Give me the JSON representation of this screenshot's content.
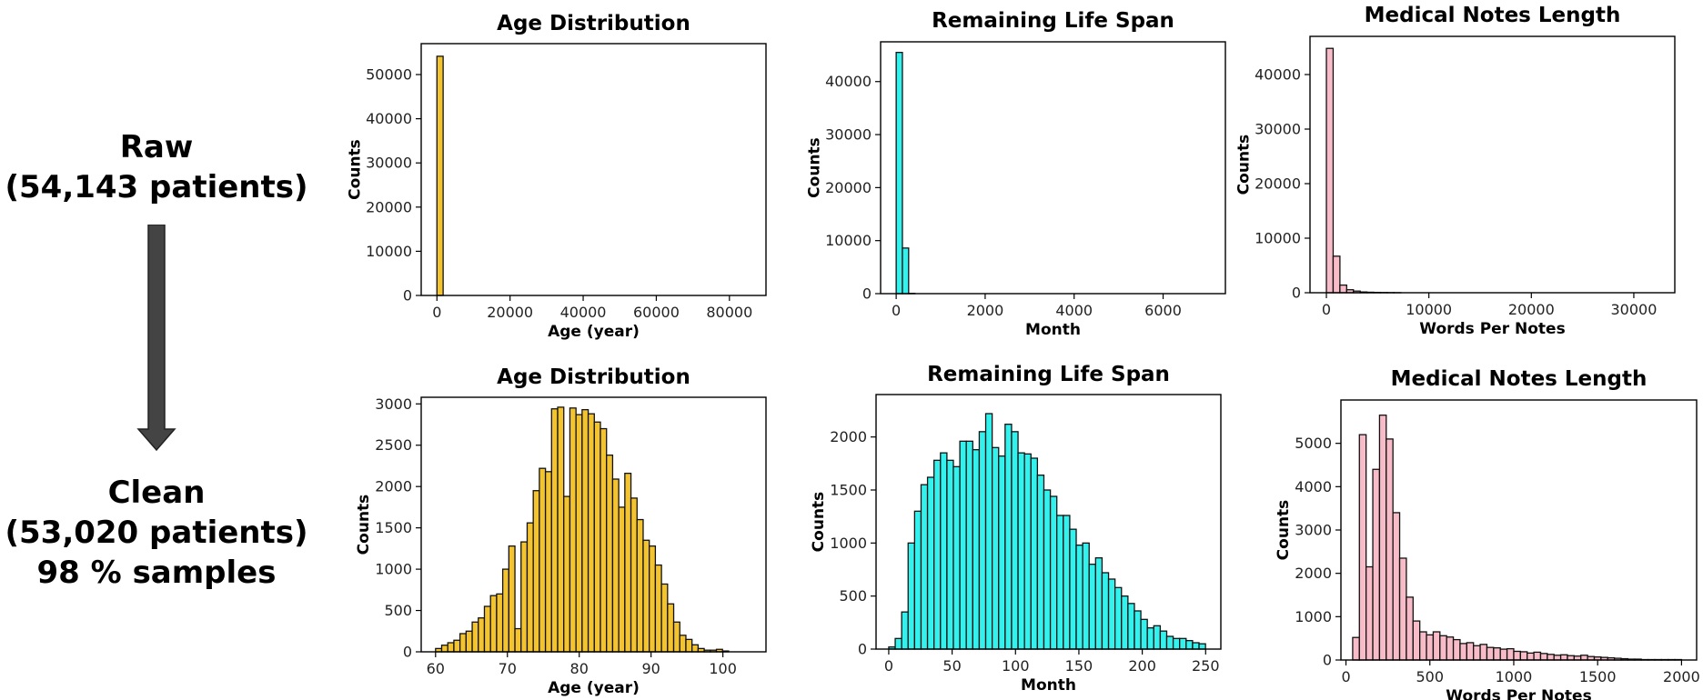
{
  "labels": {
    "raw": [
      "Raw",
      "(54,143 patients)"
    ],
    "clean": [
      "Clean",
      "(53,020 patients)",
      "98 % samples"
    ]
  },
  "colors": {
    "age": "#f4c430",
    "life": "#33f2ee",
    "notes": "#f8bcc8"
  },
  "chart_data": [
    {
      "type": "bar",
      "title": "Age Distribution",
      "xlabel": "Age (year)",
      "ylabel": "Counts",
      "color": "#f4c430",
      "bin_start": 0,
      "bin_width": 1700,
      "values": [
        54143
      ],
      "xlim": [
        -4300,
        90000
      ],
      "ylim": [
        0,
        57000
      ],
      "xticks": [
        0,
        20000,
        40000,
        60000,
        80000
      ],
      "yticks": [
        0,
        10000,
        20000,
        30000,
        40000,
        50000
      ]
    },
    {
      "type": "bar",
      "title": "Remaining Life Span",
      "xlabel": "Month",
      "ylabel": "Counts",
      "color": "#33f2ee",
      "bin_start": 0,
      "bin_width": 140,
      "values": [
        45500,
        8600,
        43
      ],
      "xlim": [
        -350,
        7400
      ],
      "ylim": [
        0,
        47500
      ],
      "xticks": [
        0,
        2000,
        4000,
        6000
      ],
      "yticks": [
        0,
        10000,
        20000,
        30000,
        40000
      ]
    },
    {
      "type": "bar",
      "title": "Medical Notes Length",
      "xlabel": "Words Per Notes",
      "ylabel": "Counts",
      "color": "#f8bcc8",
      "bin_start": 0,
      "bin_width": 660,
      "values": [
        44800,
        6700,
        1400,
        550,
        300,
        140,
        90,
        60,
        40,
        25,
        15
      ],
      "xlim": [
        -1600,
        34000
      ],
      "ylim": [
        0,
        47000
      ],
      "xticks": [
        0,
        10000,
        20000,
        30000
      ],
      "yticks": [
        0,
        10000,
        20000,
        30000,
        40000
      ]
    },
    {
      "type": "bar",
      "title": "Age Distribution",
      "xlabel": "Age (year)",
      "ylabel": "Counts",
      "color": "#f4c430",
      "bin_start": 60,
      "bin_width": 0.85,
      "values": [
        40,
        80,
        110,
        140,
        220,
        250,
        360,
        410,
        550,
        680,
        700,
        1000,
        1280,
        280,
        1330,
        1560,
        1950,
        2220,
        2180,
        2940,
        2960,
        1880,
        2950,
        2870,
        2930,
        2880,
        2780,
        2700,
        2380,
        2090,
        1750,
        2160,
        1860,
        1600,
        1350,
        1280,
        1050,
        820,
        580,
        360,
        200,
        150,
        85,
        40,
        20,
        20,
        30,
        10
      ],
      "xlim": [
        58,
        106
      ],
      "ylim": [
        0,
        3080
      ],
      "xticks": [
        60,
        70,
        80,
        90,
        100
      ],
      "yticks": [
        0,
        500,
        1000,
        1500,
        2000,
        2500,
        3000
      ]
    },
    {
      "type": "bar",
      "title": "Remaining Life Span",
      "xlabel": "Month",
      "ylabel": "Counts",
      "color": "#33f2ee",
      "bin_start": 0,
      "bin_width": 5.1,
      "values": [
        20,
        100,
        350,
        1000,
        1300,
        1550,
        1620,
        1780,
        1850,
        1780,
        1720,
        1960,
        1960,
        1880,
        2050,
        2220,
        1900,
        1820,
        2120,
        2050,
        1850,
        1840,
        1800,
        1640,
        1500,
        1440,
        1260,
        1260,
        1130,
        980,
        1000,
        800,
        860,
        720,
        660,
        580,
        500,
        430,
        360,
        280,
        200,
        220,
        170,
        120,
        100,
        100,
        80,
        60,
        50
      ],
      "xlim": [
        -10,
        262
      ],
      "ylim": [
        0,
        2400
      ],
      "xticks": [
        0,
        50,
        100,
        150,
        200,
        250
      ],
      "yticks": [
        0,
        500,
        1000,
        1500,
        2000
      ]
    },
    {
      "type": "bar",
      "title": "Medical Notes Length",
      "xlabel": "Words Per Notes",
      "ylabel": "Counts",
      "color": "#f8bcc8",
      "bin_start": 40,
      "bin_width": 40,
      "values": [
        520,
        5200,
        2150,
        4400,
        5650,
        5100,
        3400,
        2350,
        1450,
        900,
        650,
        580,
        650,
        560,
        530,
        470,
        380,
        400,
        330,
        360,
        290,
        280,
        250,
        260,
        200,
        190,
        160,
        180,
        150,
        130,
        110,
        120,
        100,
        90,
        110,
        80,
        70,
        60,
        50,
        40,
        30,
        20,
        20,
        10,
        10,
        10,
        10,
        10,
        10
      ],
      "xlim": [
        -30,
        2090
      ],
      "ylim": [
        0,
        6000
      ],
      "xticks": [
        0,
        500,
        1000,
        1500,
        2000
      ],
      "yticks": [
        0,
        1000,
        2000,
        3000,
        4000,
        5000
      ]
    }
  ]
}
